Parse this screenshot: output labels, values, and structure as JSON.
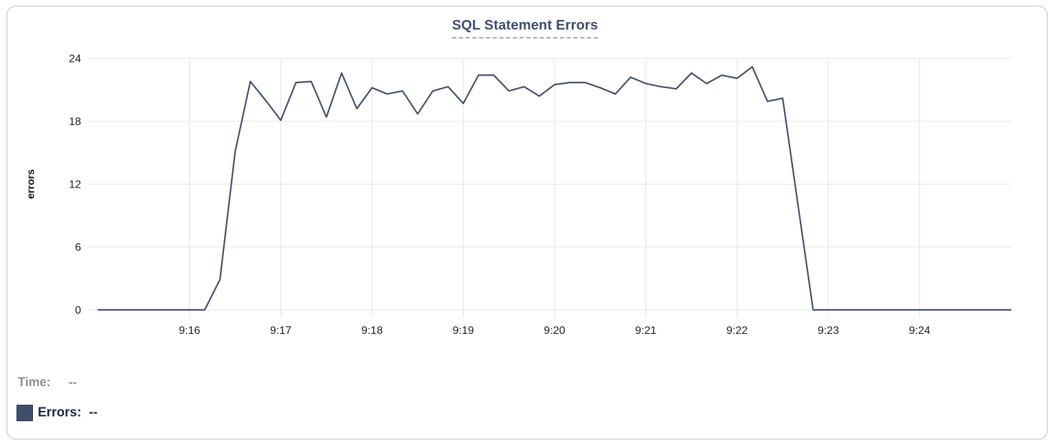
{
  "chart_data": {
    "type": "line",
    "title": "SQL Statement Errors",
    "xlabel": "",
    "ylabel": "errors",
    "ylim": [
      0,
      24
    ],
    "grid": true,
    "legend_position": "bottom-left",
    "y_ticks": [
      24,
      18,
      12,
      6,
      0
    ],
    "y_tick_labels": [
      "24",
      "18",
      "12",
      "6",
      "0"
    ],
    "x_tick_seconds": [
      60,
      120,
      180,
      240,
      300,
      360,
      420,
      480,
      540
    ],
    "x_tick_labels": [
      "9:16",
      "9:17",
      "9:18",
      "9:19",
      "9:20",
      "9:21",
      "9:22",
      "9:23",
      "9:24"
    ],
    "x_range_seconds": [
      0,
      600
    ],
    "series": [
      {
        "name": "Errors",
        "color": "#3f4e6c",
        "x_seconds": [
          0,
          10,
          20,
          30,
          40,
          50,
          60,
          70,
          80,
          90,
          100,
          110,
          120,
          130,
          140,
          150,
          160,
          170,
          180,
          190,
          200,
          210,
          220,
          230,
          240,
          250,
          260,
          270,
          280,
          290,
          300,
          310,
          320,
          330,
          340,
          350,
          360,
          370,
          380,
          390,
          400,
          410,
          420,
          430,
          440,
          450,
          460,
          470,
          480,
          490,
          500,
          510,
          520,
          530,
          540,
          550,
          560,
          570,
          580,
          590,
          600
        ],
        "values": [
          0,
          0,
          0,
          0,
          0,
          0,
          0,
          0,
          2.9,
          15.1,
          21.8,
          20,
          18.1,
          21.7,
          21.8,
          18.4,
          22.6,
          19.2,
          21.2,
          20.6,
          20.9,
          18.7,
          20.9,
          21.3,
          19.7,
          22.4,
          22.4,
          20.9,
          21.3,
          20.4,
          21.5,
          21.7,
          21.7,
          21.2,
          20.6,
          22.2,
          21.6,
          21.3,
          21.1,
          22.6,
          21.6,
          22.4,
          22.1,
          23.2,
          19.9,
          20.2,
          10.1,
          0,
          0,
          0,
          0,
          0,
          0,
          0,
          0,
          0,
          0,
          0,
          0,
          0,
          0
        ]
      }
    ]
  },
  "tooltip": {
    "time_label": "Time:",
    "time_value": "--",
    "errors_label": "Errors:",
    "errors_value": "--"
  },
  "colors": {
    "line": "#3f4e6c",
    "swatch": "#3f4e6c",
    "title": "#3c4d6e",
    "title_underline": "#9aa6bc",
    "grid": "#e9eaec",
    "axis_text": "#1a1a1a",
    "legend_time": "#8a8f99",
    "legend_errors": "#1a2550",
    "card_border": "#d9dbdf",
    "card_bg": "#ffffff"
  }
}
